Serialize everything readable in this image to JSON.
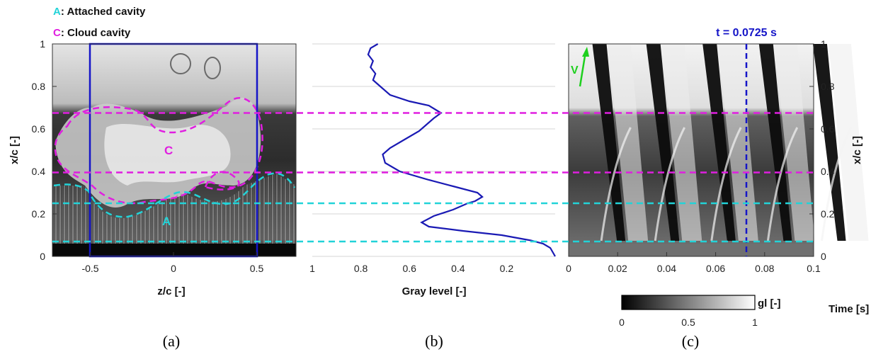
{
  "legend": [
    {
      "letter": "A",
      "text": ": Attached cavity",
      "color": "#22d3d8"
    },
    {
      "letter": "C",
      "text": ": Cloud cavity",
      "color": "#e01ee0"
    }
  ],
  "colors": {
    "cloud": "#e01ee0",
    "attached": "#22d3d8",
    "profile": "#1a1ab4",
    "frame": "#1515c8",
    "velocity": "#1fd01f",
    "time_marker": "#1515c8"
  },
  "panel_a": {
    "caption": "(a)",
    "xlabel": "z/c [-]",
    "ylabel": "x/c [-]",
    "xticks": [
      "-0.5",
      "0",
      "0.5"
    ],
    "yticks": [
      "0",
      "0.2",
      "0.4",
      "0.6",
      "0.8",
      "1"
    ],
    "region_label_cloud": "C",
    "region_label_attached": "A"
  },
  "panel_b": {
    "caption": "(b)",
    "xlabel": "Gray level [-]",
    "xticks": [
      "1",
      "0.8",
      "0.6",
      "0.4",
      "0.2"
    ]
  },
  "panel_c": {
    "caption": "(c)",
    "xlabel": "Time [s]",
    "ylabel": "x/c [-]",
    "xticks": [
      "0",
      "0.02",
      "0.04",
      "0.06",
      "0.08",
      "0.1"
    ],
    "yticks": [
      "0",
      "0.2",
      "0.4",
      "0.6",
      "0.8",
      "1"
    ],
    "time_annotation": "t = 0.0725 s",
    "velocity_label": "V",
    "colorbar_label": "gl [-]",
    "colorbar_ticks": [
      "0",
      "0.5",
      "1"
    ]
  },
  "chart_data": [
    {
      "type": "line",
      "panel": "b",
      "xlabel": "Gray level [-]",
      "ylabel": "x/c [-]",
      "xlim": [
        1,
        0
      ],
      "ylim": [
        0,
        1
      ],
      "series": [
        {
          "points": [
            [
              0.73,
              1.0
            ],
            [
              0.76,
              0.98
            ],
            [
              0.77,
              0.95
            ],
            [
              0.75,
              0.92
            ],
            [
              0.76,
              0.89
            ],
            [
              0.74,
              0.86
            ],
            [
              0.75,
              0.83
            ],
            [
              0.72,
              0.8
            ],
            [
              0.68,
              0.76
            ],
            [
              0.6,
              0.73
            ],
            [
              0.52,
              0.71
            ],
            [
              0.47,
              0.675
            ],
            [
              0.5,
              0.65
            ],
            [
              0.53,
              0.62
            ],
            [
              0.56,
              0.59
            ],
            [
              0.62,
              0.55
            ],
            [
              0.68,
              0.51
            ],
            [
              0.71,
              0.48
            ],
            [
              0.7,
              0.44
            ],
            [
              0.64,
              0.4
            ],
            [
              0.52,
              0.36
            ],
            [
              0.42,
              0.33
            ],
            [
              0.32,
              0.3
            ],
            [
              0.3,
              0.28
            ],
            [
              0.33,
              0.26
            ],
            [
              0.36,
              0.25
            ],
            [
              0.42,
              0.22
            ],
            [
              0.5,
              0.19
            ],
            [
              0.55,
              0.16
            ],
            [
              0.52,
              0.14
            ],
            [
              0.38,
              0.12
            ],
            [
              0.22,
              0.1
            ],
            [
              0.1,
              0.075
            ],
            [
              0.05,
              0.06
            ],
            [
              0.02,
              0.04
            ],
            [
              0.0,
              0.0
            ]
          ]
        }
      ],
      "horizontal_lines": [
        {
          "y": 0.675,
          "kind": "cloud"
        },
        {
          "y": 0.395,
          "kind": "cloud"
        },
        {
          "y": 0.25,
          "kind": "attached"
        },
        {
          "y": 0.07,
          "kind": "attached"
        }
      ],
      "grid": true
    },
    {
      "type": "heatmap",
      "panel": "c",
      "xlabel": "Time [s]",
      "ylabel": "x/c [-]",
      "xlim": [
        0,
        0.1
      ],
      "ylim": [
        0,
        1
      ],
      "vline_x": 0.0725,
      "colorbar": {
        "label": "gl [-]",
        "range": [
          0,
          1
        ]
      }
    }
  ]
}
